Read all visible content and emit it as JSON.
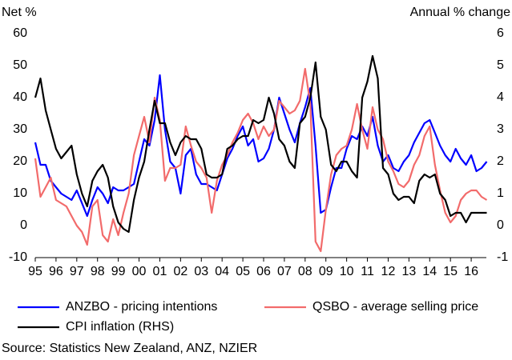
{
  "chart_data": {
    "type": "line",
    "y_label": "Net %",
    "y2_label": "Annual % change",
    "source": "Source: Statistics New Zealand, ANZ, NZIER",
    "x": [
      1995,
      1995.25,
      1995.5,
      1995.75,
      1996,
      1996.25,
      1996.5,
      1996.75,
      1997,
      1997.25,
      1997.5,
      1997.75,
      1998,
      1998.25,
      1998.5,
      1998.75,
      1999,
      1999.25,
      1999.5,
      1999.75,
      2000,
      2000.25,
      2000.5,
      2000.75,
      2001,
      2001.25,
      2001.5,
      2001.75,
      2002,
      2002.25,
      2002.5,
      2002.75,
      2003,
      2003.25,
      2003.5,
      2003.75,
      2004,
      2004.25,
      2004.5,
      2004.75,
      2005,
      2005.25,
      2005.5,
      2005.75,
      2006,
      2006.25,
      2006.5,
      2006.75,
      2007,
      2007.25,
      2007.5,
      2007.75,
      2008,
      2008.25,
      2008.5,
      2008.75,
      2009,
      2009.25,
      2009.5,
      2009.75,
      2010,
      2010.25,
      2010.5,
      2010.75,
      2011,
      2011.25,
      2011.5,
      2011.75,
      2012,
      2012.25,
      2012.5,
      2012.75,
      2013,
      2013.25,
      2013.5,
      2013.75,
      2014,
      2014.25,
      2014.5,
      2014.75,
      2015,
      2015.25,
      2015.5,
      2015.75,
      2016,
      2016.25,
      2016.5,
      2016.75
    ],
    "xlim": [
      1995,
      2017
    ],
    "xticks": [
      {
        "value": 1995,
        "label": "95"
      },
      {
        "value": 1996,
        "label": "96"
      },
      {
        "value": 1997,
        "label": "97"
      },
      {
        "value": 1998,
        "label": "98"
      },
      {
        "value": 1999,
        "label": "99"
      },
      {
        "value": 2000,
        "label": "00"
      },
      {
        "value": 2001,
        "label": "01"
      },
      {
        "value": 2002,
        "label": "02"
      },
      {
        "value": 2003,
        "label": "03"
      },
      {
        "value": 2004,
        "label": "04"
      },
      {
        "value": 2005,
        "label": "05"
      },
      {
        "value": 2006,
        "label": "06"
      },
      {
        "value": 2007,
        "label": "07"
      },
      {
        "value": 2008,
        "label": "08"
      },
      {
        "value": 2009,
        "label": "09"
      },
      {
        "value": 2010,
        "label": "10"
      },
      {
        "value": 2011,
        "label": "11"
      },
      {
        "value": 2012,
        "label": "12"
      },
      {
        "value": 2013,
        "label": "13"
      },
      {
        "value": 2014,
        "label": "14"
      },
      {
        "value": 2015,
        "label": "15"
      },
      {
        "value": 2016,
        "label": "16"
      }
    ],
    "ylim": [
      -10,
      60
    ],
    "yticks": [
      -10,
      0,
      10,
      20,
      30,
      40,
      50,
      60
    ],
    "y2lim": [
      -1,
      6
    ],
    "y2ticks": [
      -1,
      0,
      1,
      2,
      3,
      4,
      5,
      6
    ],
    "series": [
      {
        "name": "ANZBO - pricing intentions",
        "color": "#0000ff",
        "values": [
          26,
          19,
          19,
          14,
          12,
          10,
          9,
          8,
          11,
          7,
          3,
          8,
          12,
          10,
          7,
          12,
          11,
          11,
          12,
          13,
          20,
          27,
          25,
          33,
          47,
          30,
          20,
          18,
          10,
          22,
          24,
          16,
          13,
          13,
          12,
          11,
          16,
          21,
          24,
          28,
          31,
          25,
          27,
          20,
          21,
          24,
          30,
          40,
          35,
          30,
          26,
          32,
          37,
          43,
          25,
          4,
          5,
          12,
          18,
          18,
          24,
          28,
          27,
          31,
          28,
          34,
          25,
          20,
          22,
          18,
          17,
          20,
          22,
          26,
          29,
          32,
          33,
          29,
          25,
          22,
          20,
          24,
          21,
          19,
          22,
          17,
          18,
          20
        ]
      },
      {
        "name": "QSBO - average selling price",
        "color": "#f26b6b",
        "values": [
          21,
          9,
          12,
          15,
          8,
          7,
          6,
          3,
          0,
          -2,
          -6,
          6,
          8,
          -3,
          -5,
          2,
          -3,
          4,
          10,
          22,
          28,
          34,
          26,
          40,
          33,
          14,
          18,
          18,
          19,
          31,
          25,
          20,
          18,
          15,
          4,
          14,
          19,
          22,
          26,
          29,
          33,
          35,
          32,
          27,
          31,
          28,
          30,
          39,
          37,
          35,
          36,
          39,
          49,
          38,
          -5,
          -8,
          5,
          16,
          22,
          24,
          25,
          30,
          38,
          30,
          24,
          37,
          30,
          27,
          20,
          17,
          13,
          12,
          14,
          19,
          22,
          28,
          31,
          19,
          11,
          4,
          1,
          3,
          8,
          10,
          11,
          11,
          9,
          8
        ]
      },
      {
        "name": "CPI inflation (RHS)",
        "color": "#000000",
        "axis": "y2",
        "values": [
          4.0,
          4.6,
          3.6,
          3.0,
          2.4,
          2.1,
          2.3,
          2.5,
          1.6,
          1.0,
          0.6,
          1.4,
          1.7,
          1.9,
          1.5,
          0.6,
          0.1,
          -0.1,
          -0.2,
          0.8,
          1.5,
          2.0,
          3.0,
          3.9,
          3.2,
          3.2,
          2.6,
          2.2,
          2.6,
          2.8,
          2.7,
          2.7,
          2.4,
          1.6,
          1.5,
          1.5,
          1.6,
          2.4,
          2.5,
          2.7,
          2.8,
          2.8,
          3.3,
          3.2,
          3.3,
          4.0,
          3.5,
          2.7,
          2.5,
          2.0,
          1.8,
          3.2,
          3.4,
          4.0,
          5.1,
          3.4,
          3.0,
          1.9,
          1.7,
          2.0,
          2.0,
          1.7,
          1.5,
          4.0,
          4.5,
          5.3,
          4.6,
          1.8,
          1.6,
          1.0,
          0.8,
          0.9,
          0.9,
          0.7,
          1.4,
          1.6,
          1.5,
          1.6,
          1.0,
          0.8,
          0.3,
          0.4,
          0.4,
          0.1,
          0.4,
          0.4,
          0.4,
          0.4
        ]
      }
    ]
  }
}
